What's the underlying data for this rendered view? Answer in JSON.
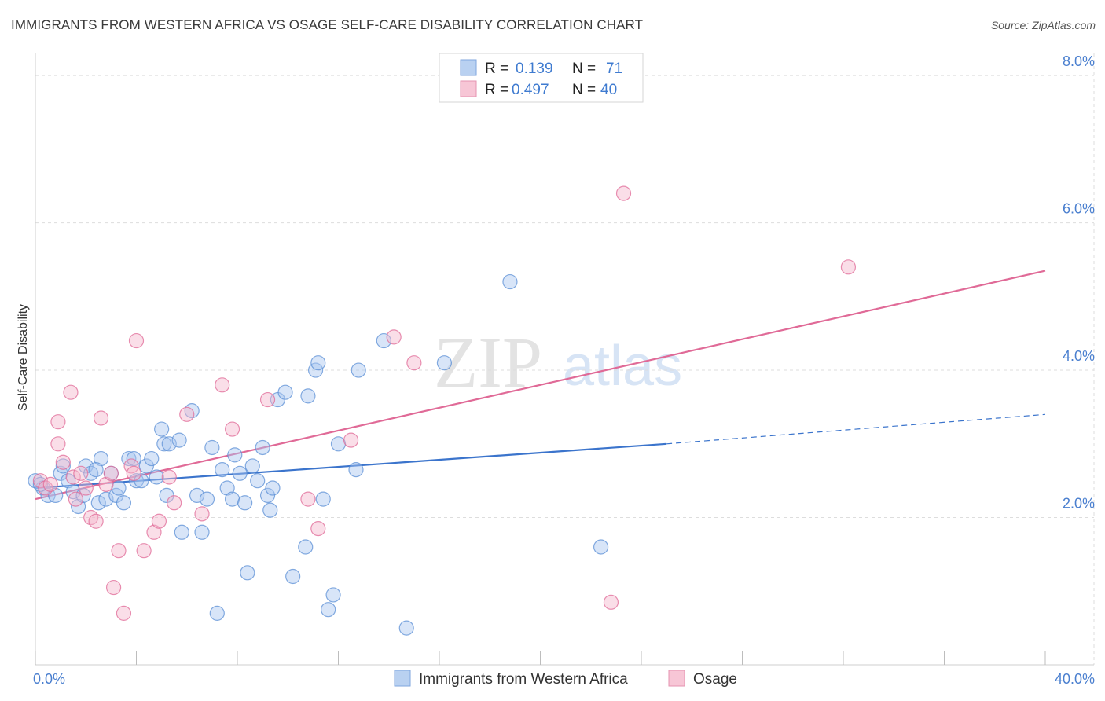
{
  "header": {
    "title": "IMMIGRANTS FROM WESTERN AFRICA VS OSAGE SELF-CARE DISABILITY CORRELATION CHART",
    "source": "Source: ZipAtlas.com"
  },
  "colors": {
    "blue": "#5b8fd6",
    "blue_fill": "#a9c6ef",
    "pink": "#e06a97",
    "pink_fill": "#f4b6cb",
    "axis_label": "#4a7fcf",
    "grid": "#dddddd"
  },
  "legend": {
    "r_label": "R =",
    "n_label": "N =",
    "series": [
      {
        "r": "0.139",
        "n": "71"
      },
      {
        "r": "0.497",
        "n": "40"
      }
    ]
  },
  "watermark": {
    "zip": "ZIP",
    "atlas": "atlas"
  },
  "chart_data": {
    "type": "scatter",
    "title": "IMMIGRANTS FROM WESTERN AFRICA VS OSAGE SELF-CARE DISABILITY CORRELATION CHART",
    "xlabel": "",
    "ylabel": "Self-Care Disability",
    "xlim": [
      0,
      40
    ],
    "ylim": [
      0,
      8.3
    ],
    "x_tick_labels": [
      "0.0%",
      "40.0%"
    ],
    "y_ticks": [
      2,
      4,
      6,
      8
    ],
    "y_tick_labels": [
      "2.0%",
      "4.0%",
      "6.0%",
      "8.0%"
    ],
    "grid": true,
    "series": [
      {
        "name": "Immigrants from Western Africa",
        "color": "blue",
        "trend": {
          "x0": 0,
          "y0": 2.4,
          "x1": 25,
          "y1": 3.0,
          "dash_to_x": 40,
          "dash_to_y": 3.4
        },
        "points": [
          [
            0.0,
            2.5
          ],
          [
            0.3,
            2.4
          ],
          [
            0.5,
            2.3
          ],
          [
            0.8,
            2.3
          ],
          [
            1.0,
            2.6
          ],
          [
            1.1,
            2.7
          ],
          [
            1.3,
            2.5
          ],
          [
            1.5,
            2.35
          ],
          [
            1.7,
            2.15
          ],
          [
            2.0,
            2.7
          ],
          [
            2.2,
            2.6
          ],
          [
            2.5,
            2.2
          ],
          [
            2.6,
            2.8
          ],
          [
            2.8,
            2.25
          ],
          [
            3.0,
            2.6
          ],
          [
            3.2,
            2.3
          ],
          [
            3.3,
            2.4
          ],
          [
            3.5,
            2.2
          ],
          [
            3.7,
            2.8
          ],
          [
            3.9,
            2.8
          ],
          [
            4.0,
            2.5
          ],
          [
            4.2,
            2.5
          ],
          [
            4.4,
            2.7
          ],
          [
            4.6,
            2.8
          ],
          [
            4.8,
            2.55
          ],
          [
            5.0,
            3.2
          ],
          [
            5.1,
            3.0
          ],
          [
            5.2,
            2.3
          ],
          [
            5.3,
            3.0
          ],
          [
            5.7,
            3.05
          ],
          [
            5.8,
            1.8
          ],
          [
            6.2,
            3.45
          ],
          [
            6.4,
            2.3
          ],
          [
            6.6,
            1.8
          ],
          [
            6.8,
            2.25
          ],
          [
            7.0,
            2.95
          ],
          [
            7.2,
            0.7
          ],
          [
            7.4,
            2.65
          ],
          [
            7.6,
            2.4
          ],
          [
            7.8,
            2.25
          ],
          [
            7.9,
            2.85
          ],
          [
            8.1,
            2.6
          ],
          [
            8.3,
            2.2
          ],
          [
            8.4,
            1.25
          ],
          [
            8.6,
            2.7
          ],
          [
            8.8,
            2.5
          ],
          [
            9.0,
            2.95
          ],
          [
            9.2,
            2.3
          ],
          [
            9.3,
            2.1
          ],
          [
            9.4,
            2.4
          ],
          [
            9.6,
            3.6
          ],
          [
            9.9,
            3.7
          ],
          [
            10.2,
            1.2
          ],
          [
            10.7,
            1.6
          ],
          [
            10.8,
            3.65
          ],
          [
            11.1,
            4.0
          ],
          [
            11.2,
            4.1
          ],
          [
            11.4,
            2.25
          ],
          [
            11.6,
            0.75
          ],
          [
            11.8,
            0.95
          ],
          [
            12.0,
            3.0
          ],
          [
            12.7,
            2.65
          ],
          [
            12.8,
            4.0
          ],
          [
            13.8,
            4.4
          ],
          [
            14.7,
            0.5
          ],
          [
            16.2,
            4.1
          ],
          [
            18.8,
            5.2
          ],
          [
            22.4,
            1.6
          ],
          [
            0.2,
            2.45
          ],
          [
            1.9,
            2.3
          ],
          [
            2.4,
            2.65
          ]
        ]
      },
      {
        "name": "Osage",
        "color": "pink",
        "trend": {
          "x0": 0,
          "y0": 2.25,
          "x1": 40,
          "y1": 5.35
        },
        "points": [
          [
            0.2,
            2.5
          ],
          [
            0.4,
            2.4
          ],
          [
            0.6,
            2.45
          ],
          [
            0.9,
            3.0
          ],
          [
            0.9,
            3.3
          ],
          [
            1.1,
            2.75
          ],
          [
            1.4,
            3.7
          ],
          [
            1.5,
            2.55
          ],
          [
            1.6,
            2.25
          ],
          [
            1.8,
            2.6
          ],
          [
            2.0,
            2.4
          ],
          [
            2.2,
            2.0
          ],
          [
            2.4,
            1.95
          ],
          [
            2.6,
            3.35
          ],
          [
            2.8,
            2.45
          ],
          [
            3.0,
            2.6
          ],
          [
            3.1,
            1.05
          ],
          [
            3.3,
            1.55
          ],
          [
            3.5,
            0.7
          ],
          [
            3.8,
            2.7
          ],
          [
            3.9,
            2.6
          ],
          [
            4.0,
            4.4
          ],
          [
            4.3,
            1.55
          ],
          [
            4.7,
            1.8
          ],
          [
            4.9,
            1.95
          ],
          [
            5.3,
            2.55
          ],
          [
            5.5,
            2.2
          ],
          [
            6.0,
            3.4
          ],
          [
            6.6,
            2.05
          ],
          [
            7.4,
            3.8
          ],
          [
            7.8,
            3.2
          ],
          [
            9.2,
            3.6
          ],
          [
            10.8,
            2.25
          ],
          [
            11.2,
            1.85
          ],
          [
            12.5,
            3.05
          ],
          [
            14.2,
            4.45
          ],
          [
            15.0,
            4.1
          ],
          [
            22.8,
            0.85
          ],
          [
            23.3,
            6.4
          ],
          [
            32.2,
            5.4
          ]
        ]
      }
    ],
    "bottom_legend": [
      "Immigrants from Western Africa",
      "Osage"
    ]
  }
}
